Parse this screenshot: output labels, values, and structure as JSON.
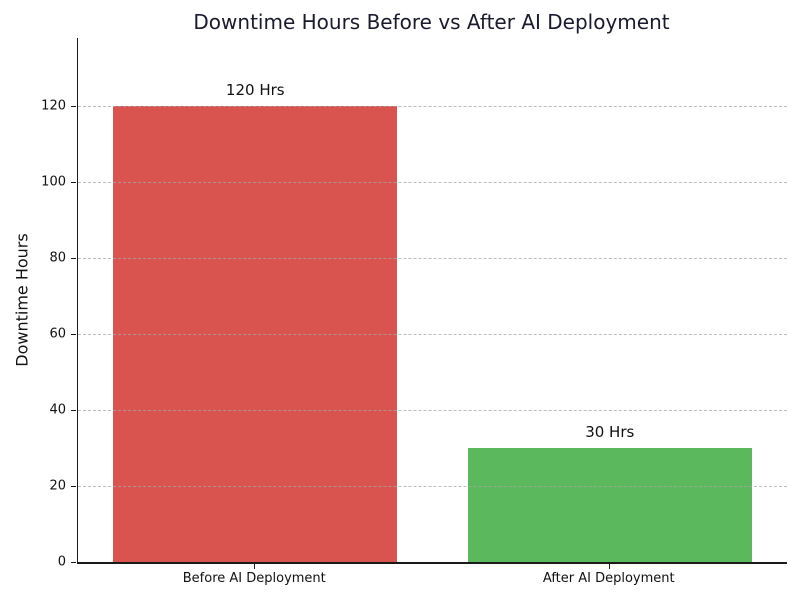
{
  "chart_data": {
    "type": "bar",
    "title": "Downtime Hours Before vs After AI Deployment",
    "categories": [
      "Before AI Deployment",
      "After AI Deployment"
    ],
    "values": [
      120,
      30
    ],
    "bar_labels": [
      "120 Hrs",
      "30 Hrs"
    ],
    "bar_colors": [
      "#d9534f",
      "#5cb85c"
    ],
    "xlabel": "",
    "ylabel": "Downtime Hours",
    "ylim": [
      0,
      138
    ],
    "yticks": [
      0,
      20,
      40,
      60,
      80,
      100,
      120
    ],
    "bar_width_fraction": 0.8,
    "grid": {
      "axis": "y",
      "style": "dashed",
      "color": "#a5a5a5",
      "visible": true
    },
    "legend": {
      "visible": false
    },
    "colors": {
      "background": "#ffffff",
      "title_text": "#1a1a2e",
      "axis_text": "#111111",
      "spine": "#1a1a1a"
    }
  }
}
